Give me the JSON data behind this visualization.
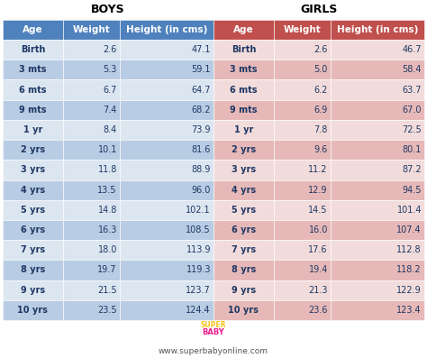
{
  "title_boys": "BOYS",
  "title_girls": "GIRLS",
  "col_headers": [
    "Age",
    "Weight",
    "Height (in cms)"
  ],
  "boys_data": [
    [
      "Birth",
      "2.6",
      "47.1"
    ],
    [
      "3 mts",
      "5.3",
      "59.1"
    ],
    [
      "6 mts",
      "6.7",
      "64.7"
    ],
    [
      "9 mts",
      "7.4",
      "68.2"
    ],
    [
      "1 yr",
      "8.4",
      "73.9"
    ],
    [
      "2 yrs",
      "10.1",
      "81.6"
    ],
    [
      "3 yrs",
      "11.8",
      "88.9"
    ],
    [
      "4 yrs",
      "13.5",
      "96.0"
    ],
    [
      "5 yrs",
      "14.8",
      "102.1"
    ],
    [
      "6 yrs",
      "16.3",
      "108.5"
    ],
    [
      "7 yrs",
      "18.0",
      "113.9"
    ],
    [
      "8 yrs",
      "19.7",
      "119.3"
    ],
    [
      "9 yrs",
      "21.5",
      "123.7"
    ],
    [
      "10 yrs",
      "23.5",
      "124.4"
    ]
  ],
  "girls_data": [
    [
      "Birth",
      "2.6",
      "46.7"
    ],
    [
      "3 mts",
      "5.0",
      "58.4"
    ],
    [
      "6 mts",
      "6.2",
      "63.7"
    ],
    [
      "9 mts",
      "6.9",
      "67.0"
    ],
    [
      "1 yr",
      "7.8",
      "72.5"
    ],
    [
      "2 yrs",
      "9.6",
      "80.1"
    ],
    [
      "3 yrs",
      "11.2",
      "87.2"
    ],
    [
      "4 yrs",
      "12.9",
      "94.5"
    ],
    [
      "5 yrs",
      "14.5",
      "101.4"
    ],
    [
      "6 yrs",
      "16.0",
      "107.4"
    ],
    [
      "7 yrs",
      "17.6",
      "112.8"
    ],
    [
      "8 yrs",
      "19.4",
      "118.2"
    ],
    [
      "9 yrs",
      "21.3",
      "122.9"
    ],
    [
      "10 yrs",
      "23.6",
      "123.4"
    ]
  ],
  "header_bg_boys": "#4f81bd",
  "header_bg_girls": "#c0504d",
  "section_title_color": "#000000",
  "row_light_boys": "#dce6f1",
  "row_dark_boys": "#b8cce4",
  "row_light_girls": "#f2dcdb",
  "row_dark_girls": "#e6b9b8",
  "header_text_color": "#ffffff",
  "data_text_color": "#1f3864",
  "footer_text": "www.superbabyonline.com",
  "bg_color": "#ffffff",
  "section_title_fontsize": 9,
  "header_fontsize": 7.5,
  "data_fontsize": 7.0
}
